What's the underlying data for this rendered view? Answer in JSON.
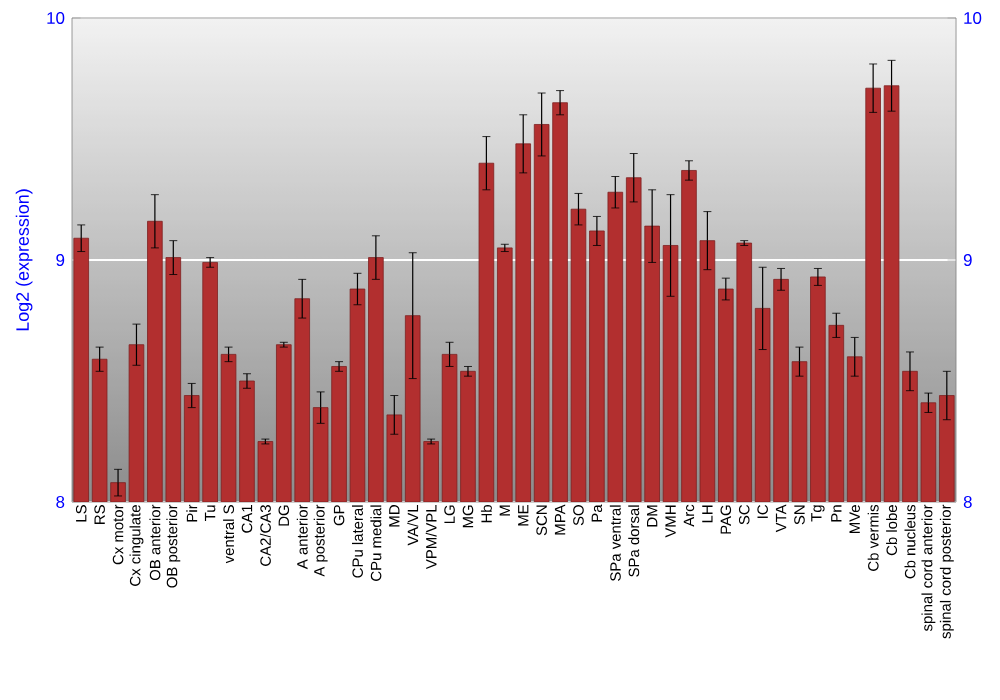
{
  "chart_data": {
    "type": "bar",
    "ylabel": "Log2 (expression)",
    "categories": [
      "LS",
      "RS",
      "Cx motor",
      "Cx cingulate",
      "OB anterior",
      "OB posterior",
      "Pir",
      "Tu",
      "ventral S",
      "CA1",
      "CA2/CA3",
      "DG",
      "A anterior",
      "A posterior",
      "GP",
      "CPu lateral",
      "CPu medial",
      "MD",
      "VA/VL",
      "VPM/VPL",
      "LG",
      "MG",
      "Hb",
      "M",
      "ME",
      "SCN",
      "MPA",
      "SO",
      "Pa",
      "SPa ventral",
      "SPa dorsal",
      "DM",
      "VMH",
      "Arc",
      "LH",
      "PAG",
      "SC",
      "IC",
      "VTA",
      "SN",
      "Tg",
      "Pn",
      "MVe",
      "Cb vermis",
      "Cb lobe",
      "Cb nucleus",
      "spinal cord anterior",
      "spinal cord posterior"
    ],
    "values": [
      9.09,
      8.59,
      8.08,
      8.65,
      9.16,
      9.01,
      8.44,
      8.99,
      8.61,
      8.5,
      8.25,
      8.65,
      8.84,
      8.39,
      8.56,
      8.88,
      9.01,
      8.36,
      8.77,
      8.25,
      8.61,
      8.54,
      9.4,
      9.05,
      9.48,
      9.56,
      9.65,
      9.21,
      9.12,
      9.28,
      9.34,
      9.14,
      9.06,
      9.37,
      9.08,
      8.88,
      9.07,
      8.8,
      8.92,
      8.58,
      8.93,
      8.73,
      8.6,
      9.71,
      9.72,
      8.54,
      8.41,
      8.44
    ],
    "errors": [
      0.055,
      0.05,
      0.055,
      0.085,
      0.11,
      0.07,
      0.05,
      0.02,
      0.03,
      0.03,
      0.01,
      0.01,
      0.08,
      0.065,
      0.02,
      0.065,
      0.09,
      0.08,
      0.26,
      0.01,
      0.05,
      0.02,
      0.11,
      0.015,
      0.12,
      0.13,
      0.05,
      0.065,
      0.06,
      0.065,
      0.1,
      0.15,
      0.21,
      0.04,
      0.12,
      0.045,
      0.01,
      0.17,
      0.045,
      0.06,
      0.035,
      0.05,
      0.08,
      0.1,
      0.105,
      0.08,
      0.04,
      0.1
    ],
    "color": "#b22f2f",
    "ylim": [
      8,
      10
    ],
    "yticks": [
      8,
      9,
      10
    ],
    "y2lim": [
      8,
      10
    ],
    "y2ticks": [
      8,
      9,
      10
    ],
    "grid": "y"
  }
}
